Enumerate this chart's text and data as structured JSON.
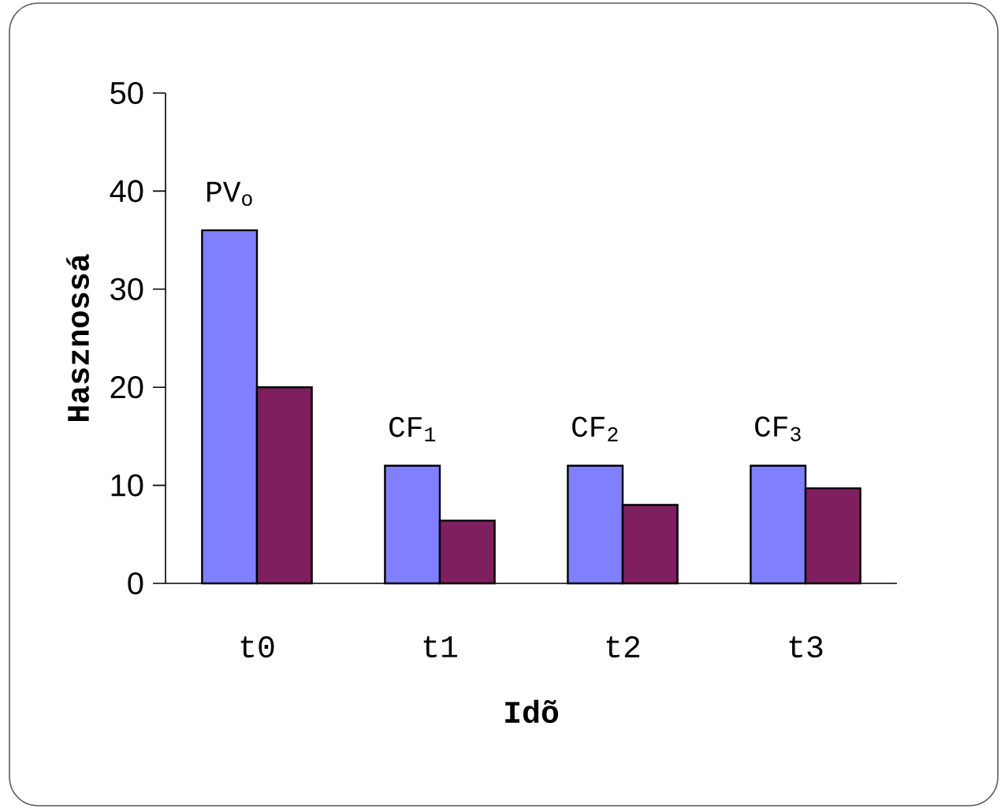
{
  "chart_data": {
    "type": "bar",
    "xlabel": "Idõ",
    "ylabel": "Hasznossá",
    "categories": [
      "t0",
      "t1",
      "t2",
      "t3"
    ],
    "series": [
      {
        "color": "#8080ff",
        "values": [
          36,
          12,
          12,
          12
        ]
      },
      {
        "color": "#7f1f5f",
        "values": [
          20,
          6.4,
          8,
          9.7
        ]
      }
    ],
    "ylim": [
      0,
      50
    ],
    "yticks": [
      0,
      10,
      20,
      30,
      40,
      50
    ],
    "annotations": [
      {
        "text": "PV$_{o}$",
        "x": "t0",
        "y": 36
      },
      {
        "text": "CF$_{1}$",
        "x": "t1",
        "y": 12
      },
      {
        "text": "CF$_{2}$",
        "x": "t2",
        "y": 12
      },
      {
        "text": "CF$_{3}$",
        "x": "t3",
        "y": 12
      }
    ]
  }
}
